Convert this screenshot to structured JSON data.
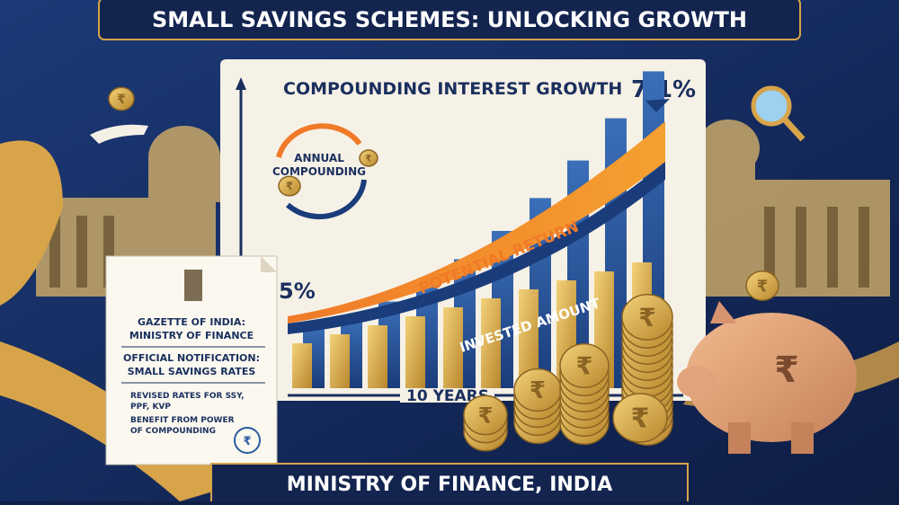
{
  "header": {
    "title": "SMALL SAVINGS SCHEMES: UNLOCKING GROWTH"
  },
  "chart": {
    "title": "COMPOUNDING INTEREST GROWTH",
    "end_rate": "7.1%",
    "start_rate": "5%",
    "cycle_label": [
      "ANNUAL",
      "COMPOUNDING"
    ],
    "upper_band": "POTENTIAL RETURN",
    "lower_band": "INVESTED AMOUNT",
    "x_label": "10 YEARS"
  },
  "document": {
    "heading": [
      "GAZETTE OF INDIA:",
      "MINISTRY OF FINANCE"
    ],
    "notice": [
      "OFFICIAL NOTIFICATION:",
      "SMALL SAVINGS RATES"
    ],
    "items": [
      [
        "REVISED RATES FOR SSY,",
        "PPF, KVP"
      ],
      [
        "BENEFIT FROM POWER",
        "OF COMPOUNDING"
      ]
    ]
  },
  "currency_symbol": "₹",
  "footer": {
    "title": "MINISTRY OF FINANCE, INDIA"
  }
}
